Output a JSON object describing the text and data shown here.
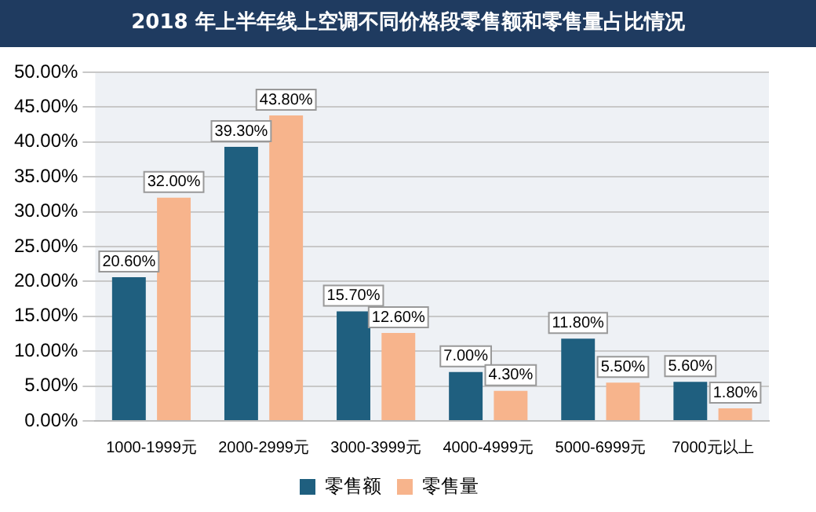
{
  "chart_data": {
    "type": "bar",
    "title": "2018 年上半年线上空调不同价格段零售额和零售量占比情况",
    "categories": [
      "1000-1999元",
      "2000-2999元",
      "3000-3999元",
      "4000-4999元",
      "5000-6999元",
      "7000元以上"
    ],
    "series": [
      {
        "name": "零售额",
        "color": "#1f5f7f",
        "values": [
          20.6,
          39.3,
          15.7,
          7.0,
          11.8,
          5.6
        ],
        "value_labels": [
          "20.60%",
          "39.30%",
          "15.70%",
          "7.00%",
          "11.80%",
          "5.60%"
        ]
      },
      {
        "name": "零售量",
        "color": "#f7b48c",
        "values": [
          32.0,
          43.8,
          12.6,
          4.3,
          5.5,
          1.8
        ],
        "value_labels": [
          "32.00%",
          "43.80%",
          "12.60%",
          "4.30%",
          "5.50%",
          "1.80%"
        ]
      }
    ],
    "ylim": [
      0,
      50
    ],
    "yticks": [
      {
        "value": 0,
        "label": "0.00%"
      },
      {
        "value": 5,
        "label": "5.00%"
      },
      {
        "value": 10,
        "label": "10.00%"
      },
      {
        "value": 15,
        "label": "15.00%"
      },
      {
        "value": 20,
        "label": "20.00%"
      },
      {
        "value": 25,
        "label": "25.00%"
      },
      {
        "value": 30,
        "label": "30.00%"
      },
      {
        "value": 35,
        "label": "35.00%"
      },
      {
        "value": 40,
        "label": "40.00%"
      },
      {
        "value": 45,
        "label": "45.00%"
      },
      {
        "value": 50,
        "label": "50.00%"
      }
    ],
    "grid": "y",
    "legend": "bottom"
  }
}
